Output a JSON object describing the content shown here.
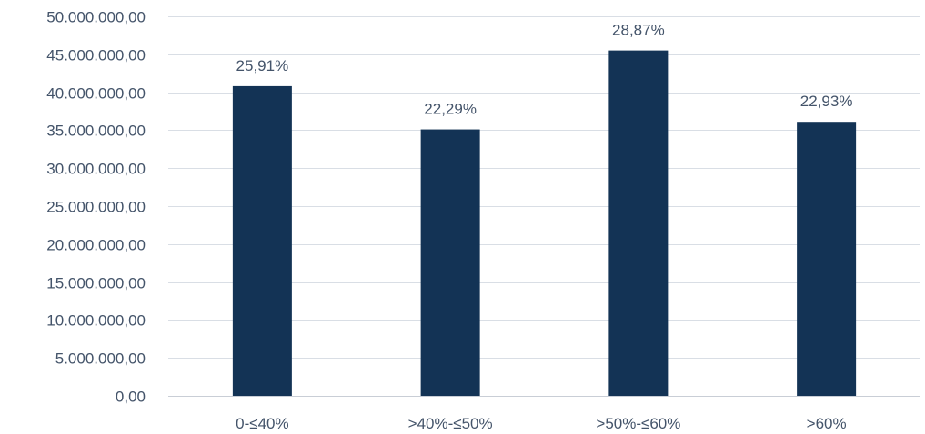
{
  "chart_data": {
    "type": "bar",
    "categories": [
      "0-≤40%",
      ">40%-≤50%",
      ">50%-≤60%",
      ">60%"
    ],
    "values": [
      40800000,
      35100000,
      45500000,
      36100000
    ],
    "data_labels": [
      "25,91%",
      "22,29%",
      "28,87%",
      "22,93%"
    ],
    "y_ticks": [
      "0,00",
      "5.000.000,00",
      "10.000.000,00",
      "15.000.000,00",
      "20.000.000,00",
      "25.000.000,00",
      "30.000.000,00",
      "35.000.000,00",
      "40.000.000,00",
      "45.000.000,00",
      "50.000.000,00"
    ],
    "ylim": [
      0,
      50000000
    ],
    "title": "",
    "xlabel": "",
    "ylabel": "",
    "grid": true,
    "legend": "none",
    "colors": {
      "bar": "#133355",
      "text": "#44546a",
      "grid": "#d9dee5"
    }
  }
}
